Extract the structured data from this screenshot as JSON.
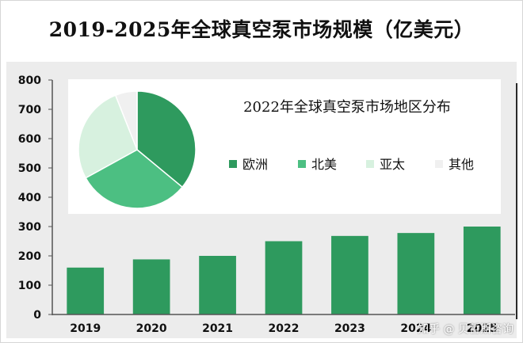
{
  "chart_data": [
    {
      "type": "bar",
      "title": "2019-2025年全球真空泵市场规模（亿美元）",
      "categories": [
        "2019",
        "2020",
        "2021",
        "2022",
        "2023",
        "2024",
        "2025"
      ],
      "values": [
        160,
        188,
        200,
        250,
        268,
        278,
        300
      ],
      "ylim": [
        0,
        800
      ],
      "yticks": [
        0,
        100,
        200,
        300,
        400,
        500,
        600,
        700,
        800
      ],
      "xlabel": "",
      "ylabel": "",
      "grid": false,
      "bar_color": "#2e9a5e"
    },
    {
      "type": "pie",
      "title": "2022年全球真空泵市场地区分布",
      "labels": [
        "欧洲",
        "北美",
        "亚太",
        "其他"
      ],
      "values": [
        36,
        31,
        27,
        6
      ],
      "colors": [
        "#2e9a5e",
        "#4cbf82",
        "#d7f1df",
        "#f0f0f0"
      ],
      "legend": "right"
    }
  ],
  "watermark": "知乎 @ 贝哲斯咨询"
}
